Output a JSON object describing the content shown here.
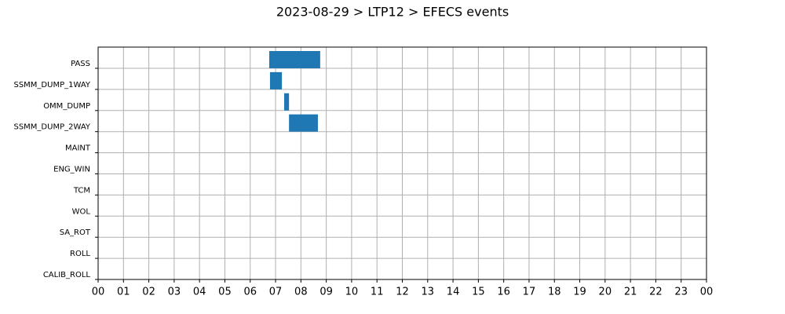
{
  "chart_data": {
    "type": "timeline",
    "title": "2023-08-29 > LTP12 > EFECS events",
    "categories": [
      "PASS",
      "SSMM_DUMP_1WAY",
      "OMM_DUMP",
      "SSMM_DUMP_2WAY",
      "MAINT",
      "ENG_WIN",
      "TCM",
      "WOL",
      "SA_ROT",
      "ROLL",
      "CALIB_ROLL"
    ],
    "starts": [
      6.75,
      6.78,
      7.34,
      7.53,
      null,
      null,
      null,
      null,
      null,
      null,
      null
    ],
    "ends": [
      8.76,
      7.25,
      7.53,
      8.67,
      null,
      null,
      null,
      null,
      null,
      null,
      null
    ],
    "color": "#1f77b4",
    "xlim": [
      0,
      24
    ],
    "xticks": [
      {
        "value": 0,
        "label": "00"
      },
      {
        "value": 1,
        "label": "01"
      },
      {
        "value": 2,
        "label": "02"
      },
      {
        "value": 3,
        "label": "03"
      },
      {
        "value": 4,
        "label": "04"
      },
      {
        "value": 5,
        "label": "05"
      },
      {
        "value": 6,
        "label": "06"
      },
      {
        "value": 7,
        "label": "07"
      },
      {
        "value": 8,
        "label": "08"
      },
      {
        "value": 9,
        "label": "09"
      },
      {
        "value": 10,
        "label": "10"
      },
      {
        "value": 11,
        "label": "11"
      },
      {
        "value": 12,
        "label": "12"
      },
      {
        "value": 13,
        "label": "13"
      },
      {
        "value": 14,
        "label": "14"
      },
      {
        "value": 15,
        "label": "15"
      },
      {
        "value": 16,
        "label": "16"
      },
      {
        "value": 17,
        "label": "17"
      },
      {
        "value": 18,
        "label": "18"
      },
      {
        "value": 19,
        "label": "19"
      },
      {
        "value": 20,
        "label": "20"
      },
      {
        "value": 21,
        "label": "21"
      },
      {
        "value": 22,
        "label": "22"
      },
      {
        "value": 23,
        "label": "23"
      },
      {
        "value": 24,
        "label": "00"
      }
    ],
    "grid": true
  }
}
